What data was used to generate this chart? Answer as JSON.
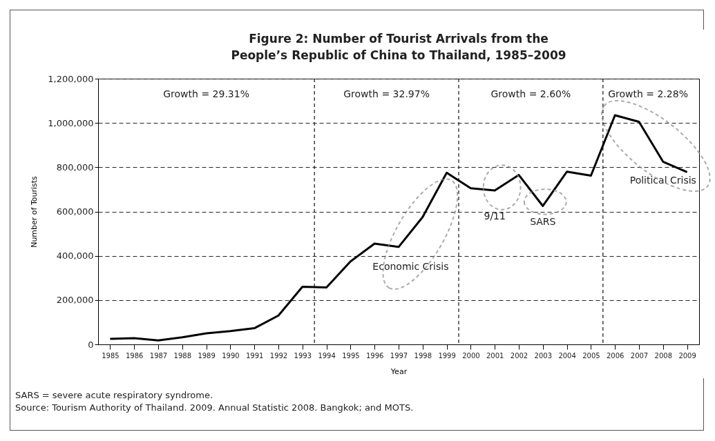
{
  "chart_data": {
    "type": "line",
    "title": "Figure 2:    Number of Tourist Arrivals from the People’s Republic of China to Thailand, 1985–2009",
    "xlabel": "Year",
    "ylabel": "Number of Tourists",
    "x": [
      1985,
      1986,
      1987,
      1988,
      1989,
      1990,
      1991,
      1992,
      1993,
      1994,
      1995,
      1996,
      1997,
      1998,
      1999,
      2000,
      2001,
      2002,
      2003,
      2004,
      2005,
      2006,
      2007,
      2008,
      2009
    ],
    "series": [
      {
        "color": "#000000",
        "values": [
          25000,
          28000,
          18000,
          32000,
          50000,
          60000,
          73000,
          130000,
          260000,
          257000,
          375000,
          455000,
          440000,
          575000,
          775000,
          705000,
          695000,
          765000,
          625000,
          780000,
          762000,
          1035000,
          1005000,
          825000,
          778000
        ]
      }
    ],
    "xlim": [
      1984.5,
      2009.5
    ],
    "xticks": [
      1985,
      1986,
      1987,
      1988,
      1989,
      1990,
      1991,
      1992,
      1993,
      1994,
      1995,
      1996,
      1997,
      1998,
      1999,
      2000,
      2001,
      2002,
      2003,
      2004,
      2005,
      2006,
      2007,
      2008,
      2009
    ],
    "ylim": [
      0,
      1200000
    ],
    "yticks": [
      0,
      {
        "value": 200000,
        "label": "200,000"
      },
      {
        "value": 400000,
        "label": "400,000"
      },
      {
        "value": 600000,
        "label": "600,000"
      },
      {
        "value": 800000,
        "label": "800,000"
      },
      {
        "value": 1000000,
        "label": "1,000,000"
      },
      {
        "value": 1200000,
        "label": "1,200,000"
      }
    ],
    "grid": "y",
    "marker": "none",
    "line_style": "solid",
    "ref_lines": [
      {
        "axis": "x",
        "value": 1993.5,
        "line_style": "dashed"
      },
      {
        "axis": "x",
        "value": 1999.5,
        "line_style": "dashed"
      },
      {
        "axis": "x",
        "value": 2005.5,
        "line_style": "dashed"
      }
    ],
    "annotations": [
      "Growth = 29.31%",
      "Growth = 32.97%",
      "Growth = 2.60%",
      "Growth = 2.28%",
      "Economic Crisis",
      "9/11",
      "SARS",
      "Political Crisis",
      "SARS = severe acute respiratory syndrome.",
      "Source: Tourism Authority of Thailand. 2009. Annual Statistic 2008. Bangkok; and MOTS."
    ]
  }
}
